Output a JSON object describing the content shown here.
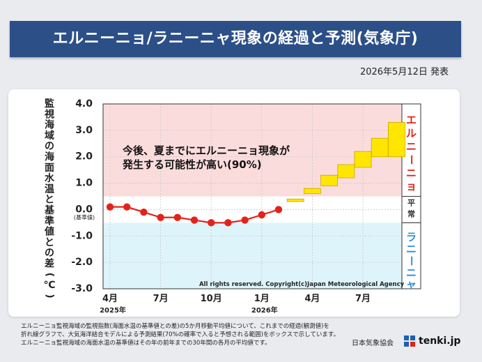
{
  "header": {
    "title": "エルニーニョ/ラニーニャ現象の経過と予測(気象庁)"
  },
  "announcement": "2026年5月12日 発表",
  "chart_data": {
    "type": "line",
    "title": "",
    "ylabel": "監視海域の海面水温と基準値との差(℃)",
    "ylim": [
      -3.0,
      4.0
    ],
    "y_ticks": [
      "4.0",
      "3.0",
      "2.0",
      "1.0",
      "0.0",
      "-1.0",
      "-2.0",
      "-3.0"
    ],
    "baseline_label": "(基準値)",
    "x_ticks": [
      {
        "label": "4月",
        "year": "2025年"
      },
      {
        "label": "7月",
        "year": ""
      },
      {
        "label": "10月",
        "year": ""
      },
      {
        "label": "1月",
        "year": "2026年"
      },
      {
        "label": "4月",
        "year": ""
      },
      {
        "label": "7月",
        "year": ""
      }
    ],
    "observed": {
      "months": [
        "2025-04",
        "2025-05",
        "2025-06",
        "2025-07",
        "2025-08",
        "2025-09",
        "2025-10",
        "2025-11",
        "2025-12",
        "2026-01",
        "2026-02"
      ],
      "values": [
        0.1,
        0.1,
        -0.1,
        -0.3,
        -0.3,
        -0.4,
        -0.5,
        -0.5,
        -0.4,
        -0.2,
        0.0
      ]
    },
    "forecast_boxes": {
      "months": [
        "2026-03",
        "2026-04",
        "2026-05",
        "2026-06",
        "2026-07",
        "2026-08",
        "2026-09"
      ],
      "low": [
        0.3,
        0.6,
        0.9,
        1.2,
        1.6,
        2.0,
        2.0
      ],
      "high": [
        0.4,
        0.8,
        1.3,
        1.7,
        2.2,
        2.7,
        3.3
      ]
    },
    "regions": {
      "el_nino": "エルニーニョ",
      "normal": "平常",
      "la_nina": "ラニーニャ"
    },
    "annotation": "今後、夏までにエルニーニョ現象が\n発生する可能性が高い(90%)",
    "copyright": "All rights reserved. Copyright(c)Japan Meteorological Agency",
    "colors": {
      "el_nino_bg": "#fbdcdc",
      "la_nina_bg": "#def4fb",
      "line": "#e3231a",
      "box_fill": "#ffe600",
      "box_stroke": "#c8a400",
      "el_nino_text": "#e3231a",
      "la_nina_text": "#2a8fd8"
    }
  },
  "footer": {
    "lines": [
      "エルニーニョ監視海域の監視指数(海面水温の基準値との差)の5か月移動平均値について、これまでの経過(観測値)を",
      "折れ線グラフで、大気海洋結合モデルによる予測結果(70%の確率で入ると予想される範囲)をボックスで示しています。",
      "エルニーニョ監視海域の海面水温の基準値はその年の前年までの30年間の各月の平均値です。"
    ],
    "org": "日本気象協会",
    "logo_text": "tenki.jp"
  }
}
